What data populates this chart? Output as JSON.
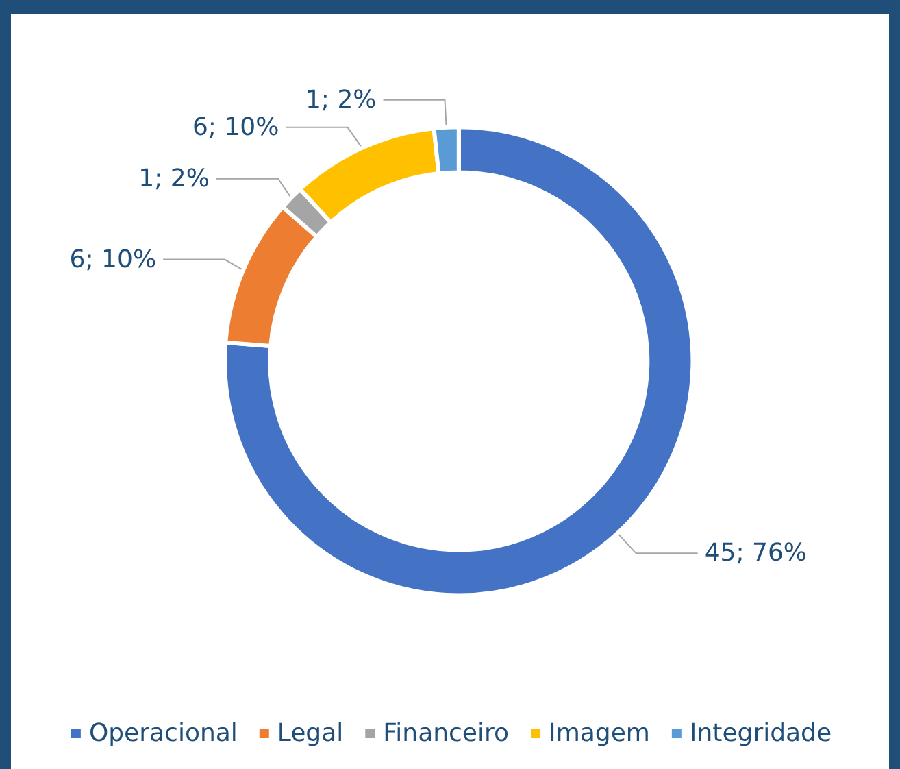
{
  "chart_data": {
    "type": "donut",
    "categories": [
      "Operacional",
      "Legal",
      "Financeiro",
      "Imagem",
      "Integridade"
    ],
    "values": [
      45,
      6,
      1,
      6,
      1
    ],
    "colors": [
      "#4472c4",
      "#ed7d31",
      "#a5a5a5",
      "#ffc000",
      "#5b9bd5"
    ],
    "value_labels": [
      "45; 76%",
      "6; 10%",
      "1; 2%",
      "6; 10%",
      "1; 2%"
    ],
    "legend": "bottom"
  }
}
